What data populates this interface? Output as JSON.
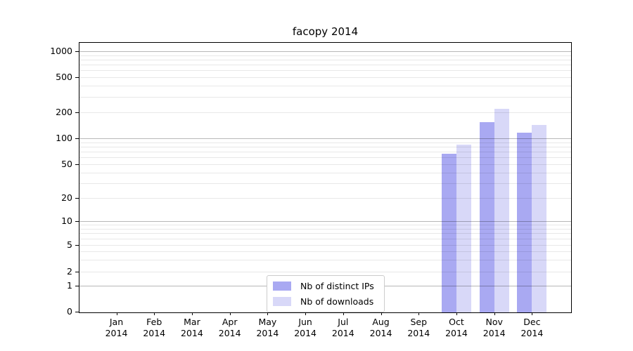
{
  "chart_data": {
    "type": "bar",
    "title": "facopy 2014",
    "y_scale": "symlog",
    "grid": true,
    "ylim": [
      0,
      1250
    ],
    "yticks": [
      0,
      1,
      2,
      5,
      10,
      20,
      50,
      100,
      200,
      500,
      1000
    ],
    "categories": [
      {
        "line1": "Jan",
        "line2": "2014"
      },
      {
        "line1": "Feb",
        "line2": "2014"
      },
      {
        "line1": "Mar",
        "line2": "2014"
      },
      {
        "line1": "Apr",
        "line2": "2014"
      },
      {
        "line1": "May",
        "line2": "2014"
      },
      {
        "line1": "Jun",
        "line2": "2014"
      },
      {
        "line1": "Jul",
        "line2": "2014"
      },
      {
        "line1": "Aug",
        "line2": "2014"
      },
      {
        "line1": "Sep",
        "line2": "2014"
      },
      {
        "line1": "Oct",
        "line2": "2014"
      },
      {
        "line1": "Nov",
        "line2": "2014"
      },
      {
        "line1": "Dec",
        "line2": "2014"
      }
    ],
    "series": [
      {
        "name": "Nb of distinct IPs",
        "color": "#a9a9f2",
        "values": [
          0,
          0,
          0,
          0,
          0,
          0,
          0,
          0,
          0,
          66,
          155,
          116
        ]
      },
      {
        "name": "Nb of downloads",
        "color": "#d8d8f8",
        "values": [
          0,
          0,
          0,
          0,
          0,
          0,
          0,
          0,
          0,
          85,
          220,
          143
        ]
      }
    ],
    "legend_position": "bottom-center"
  }
}
